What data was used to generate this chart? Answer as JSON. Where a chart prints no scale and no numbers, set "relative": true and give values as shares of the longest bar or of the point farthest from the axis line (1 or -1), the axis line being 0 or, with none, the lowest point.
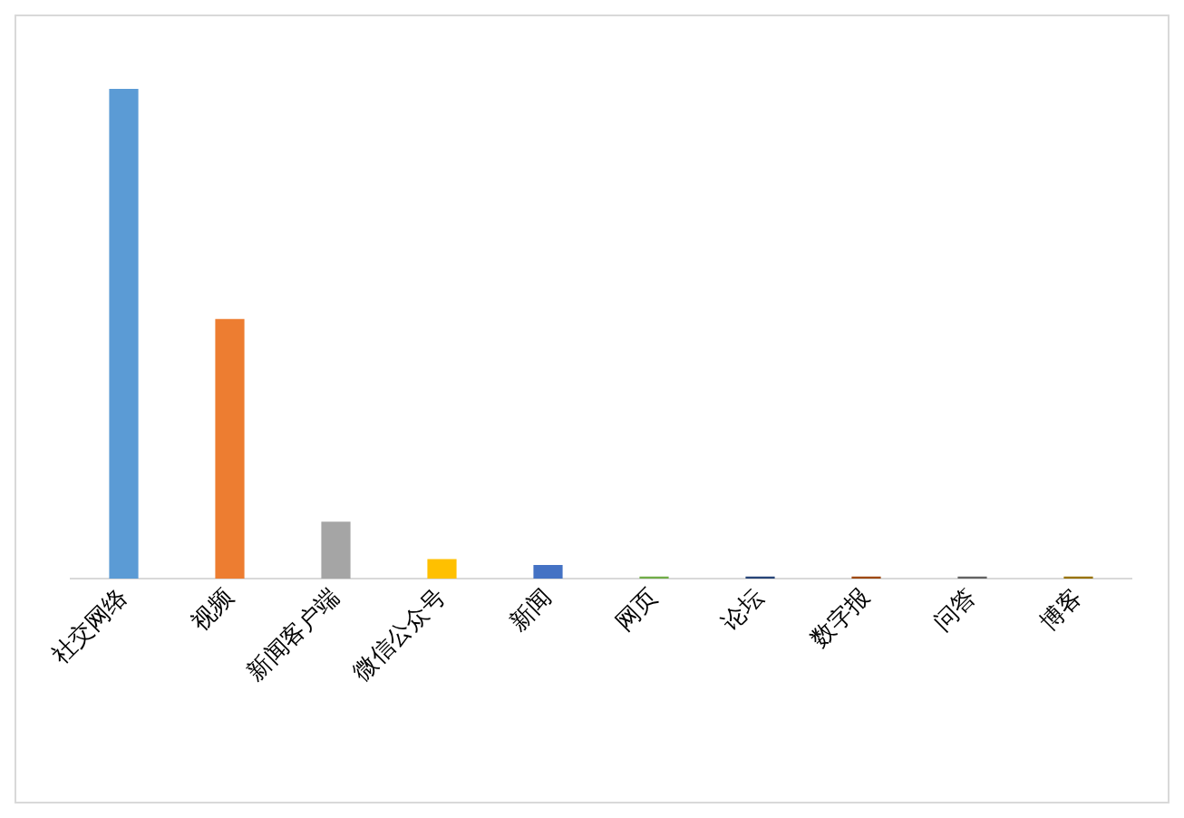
{
  "chart_data": {
    "type": "bar",
    "relative": true,
    "grid": false,
    "legend": false,
    "categories": [
      "社交网络",
      "视频",
      "新闻客户端",
      "微信公众号",
      "新闻",
      "网页",
      "论坛",
      "数字报",
      "问答",
      "博客"
    ],
    "values": [
      1,
      0.53,
      0.116,
      0.04,
      0.028,
      0.004,
      0.004,
      0.004,
      0.004,
      0.004
    ],
    "colors": [
      "#5b9bd5",
      "#ed7d31",
      "#a5a5a5",
      "#ffc000",
      "#4472c4",
      "#70ad47",
      "#264478",
      "#9e480e",
      "#636363",
      "#997300"
    ]
  }
}
